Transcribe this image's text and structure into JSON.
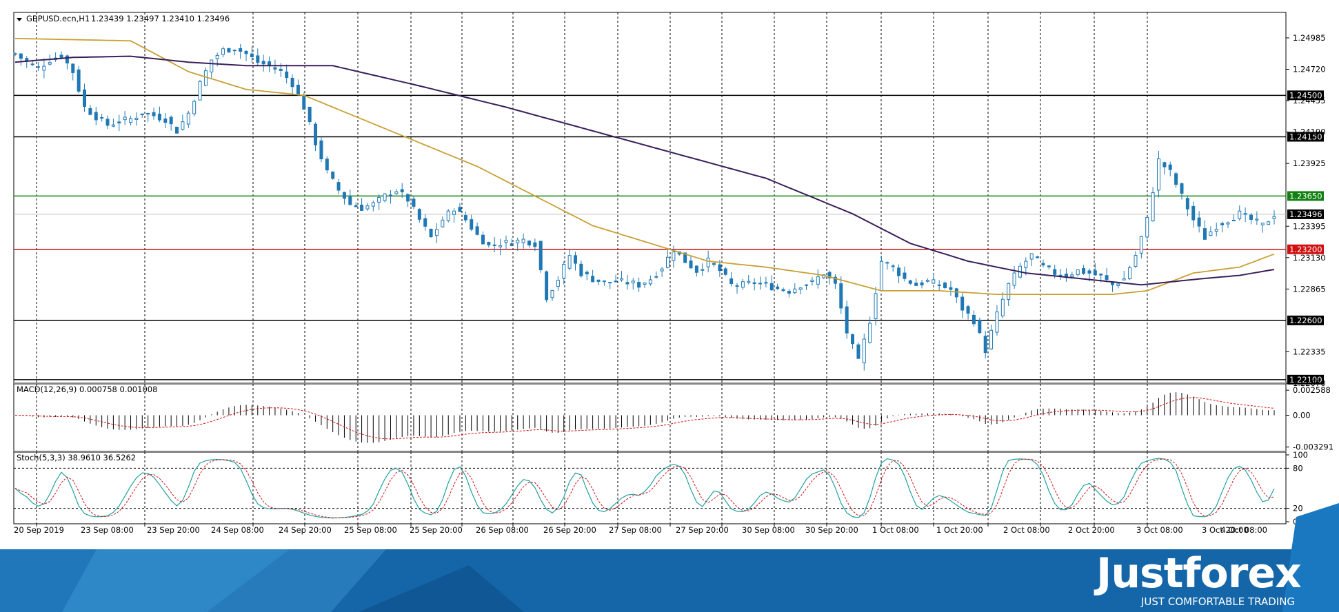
{
  "header": {
    "symbol_label": "GBPUSD.ecn,H1",
    "ohlc_label": "1.23439 1.23497 1.23410 1.23496"
  },
  "macd": {
    "label": "MACD(12,26,9) 0.000758 0.001008"
  },
  "stoch": {
    "label": "Stoch(5,3,3) 38.9610 36.5262"
  },
  "brand": {
    "name": "Justforex",
    "slogan": "JUST COMFORTABLE TRADING"
  },
  "colors": {
    "candle": "#1f78b4",
    "ma_fast": "#c8a032",
    "ma_slow": "#3a1e5a",
    "resistance_line": "#000000",
    "green_line": "#108010",
    "red_line": "#d01010",
    "banner": "#1566a8"
  },
  "chart_data": [
    {
      "type": "candlestick",
      "symbol": "GBPUSD",
      "timeframe": "H1",
      "ylim": [
        1.2207,
        1.252
      ],
      "y_ticks": [
        1.24985,
        1.2472,
        1.24455,
        1.2419,
        1.23925,
        1.23395,
        1.2313,
        1.22865,
        1.22335,
        1.2207
      ],
      "x_ticks": [
        "20 Sep 2019",
        "23 Sep 08:00",
        "23 Sep 20:00",
        "24 Sep 08:00",
        "24 Sep 20:00",
        "25 Sep 08:00",
        "25 Sep 20:00",
        "26 Sep 08:00",
        "26 Sep 20:00",
        "27 Sep 08:00",
        "27 Sep 20:00",
        "30 Sep 08:00",
        "30 Sep 20:00",
        "1 Oct 08:00",
        "1 Oct 20:00",
        "2 Oct 08:00",
        "2 Oct 20:00",
        "3 Oct 08:00",
        "3 Oct 20:00",
        "4 Oct 08:00"
      ],
      "horizontal_levels": [
        {
          "value": 1.245,
          "label": "1.24500",
          "color": "#000000"
        },
        {
          "value": 1.2415,
          "label": "1.24150",
          "color": "#000000"
        },
        {
          "value": 1.2365,
          "label": "1.23650",
          "color": "#108010"
        },
        {
          "value": 1.232,
          "label": "1.23200",
          "color": "#d01010"
        },
        {
          "value": 1.226,
          "label": "1.22600",
          "color": "#000000"
        },
        {
          "value": 1.221,
          "label": "1.22100",
          "color": "#000000"
        }
      ],
      "current_price": {
        "value": 1.23496,
        "label": "1.23496"
      },
      "close_path": [
        [
          0,
          1.2485
        ],
        [
          2,
          1.2478
        ],
        [
          4,
          1.2473
        ],
        [
          6,
          1.248
        ],
        [
          8,
          1.2484
        ],
        [
          10,
          1.247
        ],
        [
          12,
          1.244
        ],
        [
          14,
          1.2432
        ],
        [
          16,
          1.2425
        ],
        [
          18,
          1.2428
        ],
        [
          20,
          1.243
        ],
        [
          22,
          1.2435
        ],
        [
          24,
          1.2433
        ],
        [
          26,
          1.243
        ],
        [
          28,
          1.242
        ],
        [
          30,
          1.2435
        ],
        [
          32,
          1.246
        ],
        [
          34,
          1.248
        ],
        [
          36,
          1.2488
        ],
        [
          38,
          1.249
        ],
        [
          40,
          1.2485
        ],
        [
          42,
          1.2478
        ],
        [
          44,
          1.2475
        ],
        [
          46,
          1.247
        ],
        [
          48,
          1.246
        ],
        [
          50,
          1.244
        ],
        [
          52,
          1.241
        ],
        [
          54,
          1.2385
        ],
        [
          56,
          1.237
        ],
        [
          58,
          1.2358
        ],
        [
          60,
          1.2355
        ],
        [
          62,
          1.2358
        ],
        [
          64,
          1.2365
        ],
        [
          66,
          1.237
        ],
        [
          68,
          1.2362
        ],
        [
          70,
          1.2345
        ],
        [
          72,
          1.233
        ],
        [
          74,
          1.2345
        ],
        [
          76,
          1.2355
        ],
        [
          78,
          1.2345
        ],
        [
          80,
          1.2332
        ],
        [
          82,
          1.2323
        ],
        [
          84,
          1.2325
        ],
        [
          86,
          1.2326
        ],
        [
          88,
          1.2328
        ],
        [
          90,
          1.2325
        ],
        [
          92,
          1.228
        ],
        [
          94,
          1.2295
        ],
        [
          96,
          1.2315
        ],
        [
          98,
          1.23
        ],
        [
          100,
          1.2295
        ],
        [
          102,
          1.2292
        ],
        [
          104,
          1.2293
        ],
        [
          106,
          1.2292
        ],
        [
          108,
          1.229
        ],
        [
          110,
          1.2295
        ],
        [
          112,
          1.2305
        ],
        [
          114,
          1.232
        ],
        [
          116,
          1.231
        ],
        [
          118,
          1.2302
        ],
        [
          120,
          1.231
        ],
        [
          122,
          1.2302
        ],
        [
          124,
          1.229
        ],
        [
          126,
          1.229
        ],
        [
          128,
          1.2292
        ],
        [
          130,
          1.229
        ],
        [
          132,
          1.2287
        ],
        [
          134,
          1.2285
        ],
        [
          136,
          1.229
        ],
        [
          138,
          1.2292
        ],
        [
          140,
          1.23
        ],
        [
          142,
          1.229
        ],
        [
          144,
          1.225
        ],
        [
          146,
          1.2225
        ],
        [
          148,
          1.226
        ],
        [
          150,
          1.231
        ],
        [
          152,
          1.2305
        ],
        [
          154,
          1.2295
        ],
        [
          156,
          1.229
        ],
        [
          158,
          1.2293
        ],
        [
          160,
          1.229
        ],
        [
          162,
          1.2286
        ],
        [
          164,
          1.227
        ],
        [
          166,
          1.226
        ],
        [
          168,
          1.2235
        ],
        [
          170,
          1.2265
        ],
        [
          172,
          1.229
        ],
        [
          174,
          1.2305
        ],
        [
          176,
          1.2315
        ],
        [
          178,
          1.2305
        ],
        [
          180,
          1.23
        ],
        [
          182,
          1.2298
        ],
        [
          184,
          1.2302
        ],
        [
          186,
          1.23
        ],
        [
          188,
          1.2297
        ],
        [
          190,
          1.229
        ],
        [
          192,
          1.2295
        ],
        [
          194,
          1.2315
        ],
        [
          196,
          1.2345
        ],
        [
          198,
          1.2395
        ],
        [
          200,
          1.2385
        ],
        [
          202,
          1.2365
        ],
        [
          204,
          1.2345
        ],
        [
          206,
          1.233
        ],
        [
          208,
          1.234
        ],
        [
          210,
          1.2345
        ],
        [
          212,
          1.235
        ],
        [
          214,
          1.2345
        ],
        [
          216,
          1.234
        ],
        [
          218,
          1.23496
        ]
      ],
      "series": [
        {
          "values": [
            [
              0,
              1.2498
            ],
            [
              20,
              1.2496
            ],
            [
              30,
              1.247
            ],
            [
              40,
              1.2455
            ],
            [
              50,
              1.245
            ],
            [
              60,
              1.243
            ],
            [
              70,
              1.241
            ],
            [
              80,
              1.239
            ],
            [
              90,
              1.2365
            ],
            [
              100,
              1.234
            ],
            [
              110,
              1.2325
            ],
            [
              120,
              1.231
            ],
            [
              130,
              1.2305
            ],
            [
              140,
              1.2298
            ],
            [
              150,
              1.2285
            ],
            [
              160,
              1.2285
            ],
            [
              170,
              1.2282
            ],
            [
              180,
              1.2282
            ],
            [
              190,
              1.2282
            ],
            [
              196,
              1.2285
            ],
            [
              204,
              1.23
            ],
            [
              212,
              1.2305
            ],
            [
              218,
              1.2316
            ]
          ]
        },
        {
          "values": [
            [
              0,
              1.2478
            ],
            [
              10,
              1.2482
            ],
            [
              20,
              1.2483
            ],
            [
              30,
              1.2478
            ],
            [
              40,
              1.2475
            ],
            [
              55,
              1.2475
            ],
            [
              70,
              1.2458
            ],
            [
              85,
              1.244
            ],
            [
              100,
              1.242
            ],
            [
              115,
              1.24
            ],
            [
              130,
              1.238
            ],
            [
              145,
              1.235
            ],
            [
              155,
              1.2325
            ],
            [
              165,
              1.231
            ],
            [
              175,
              1.23
            ],
            [
              185,
              1.2295
            ],
            [
              195,
              1.229
            ],
            [
              205,
              1.2295
            ],
            [
              212,
              1.2298
            ],
            [
              218,
              1.2303
            ]
          ]
        }
      ]
    },
    {
      "type": "bar",
      "name": "MACD(12,26,9)",
      "values_label": "0.000758 0.001008",
      "y_ticks": [
        0.002588,
        0.0,
        -0.003291
      ],
      "ylim": [
        -0.0036,
        0.0031
      ]
    },
    {
      "type": "line",
      "name": "Stoch(5,3,3)",
      "values_label": "38.9610 36.5262",
      "y_ticks": [
        100,
        80,
        20,
        0
      ],
      "ylim": [
        0,
        100
      ]
    }
  ]
}
